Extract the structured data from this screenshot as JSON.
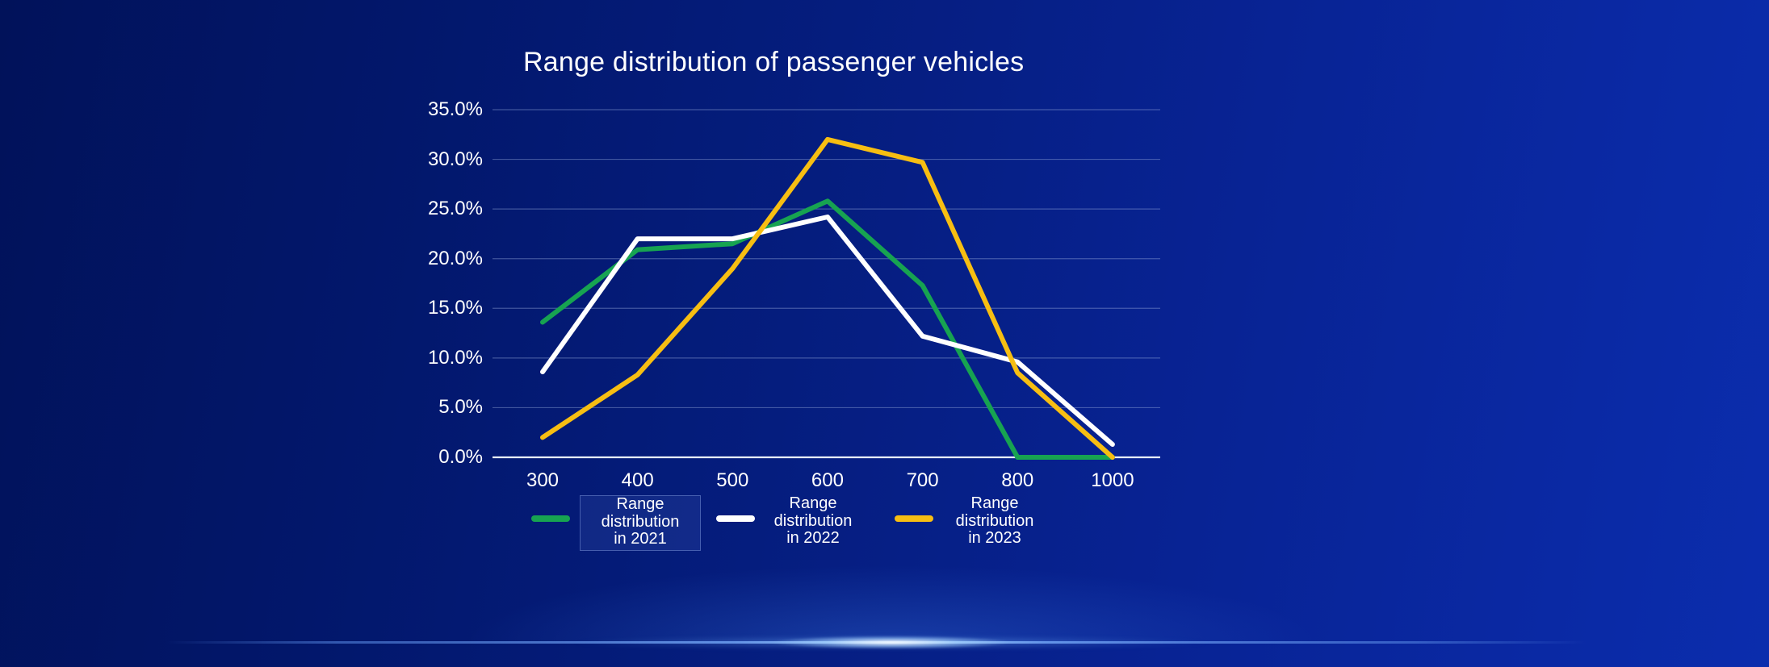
{
  "page": {
    "background_top_left": "#01125A",
    "background_right": "#0B2DAD",
    "text_color": "#FFFFFF",
    "gridline_color": "rgba(165,185,230,0.38)",
    "axis_line_color": "#E6EDF8",
    "horizon_glow_color": "#9CCBFF"
  },
  "chart_data": {
    "type": "line",
    "title": "Range distribution of passenger vehicles",
    "categories": [
      "300",
      "400",
      "500",
      "600",
      "700",
      "800",
      "1000"
    ],
    "series": [
      {
        "name": "Range distribution in 2021",
        "legend_label": "Range\ndistribution\nin 2021",
        "color": "#17A351",
        "legend_boxed": true,
        "values": [
          13.6,
          20.9,
          21.5,
          25.8,
          17.3,
          0.0,
          0.0
        ]
      },
      {
        "name": "Range distribution in 2022",
        "legend_label": "Range\ndistribution\nin 2022",
        "color": "#FFFFFF",
        "legend_boxed": false,
        "values": [
          8.6,
          22.0,
          22.0,
          24.2,
          12.2,
          9.6,
          1.3
        ]
      },
      {
        "name": "Range distribution in 2023",
        "legend_label": "Range\ndistribution\nin 2023",
        "color": "#F7BE12",
        "legend_boxed": false,
        "values": [
          2.0,
          8.3,
          19.0,
          32.0,
          29.7,
          8.5,
          0.0
        ]
      }
    ],
    "xlabel": "",
    "ylabel": "",
    "ylim": [
      0,
      35
    ],
    "ytick_step": 5,
    "yticks": [
      "35.0%",
      "30.0%",
      "25.0%",
      "20.0%",
      "15.0%",
      "10.0%",
      "5.0%",
      "0.0%"
    ],
    "grid": "horizontal-only",
    "legend_position": "bottom"
  }
}
